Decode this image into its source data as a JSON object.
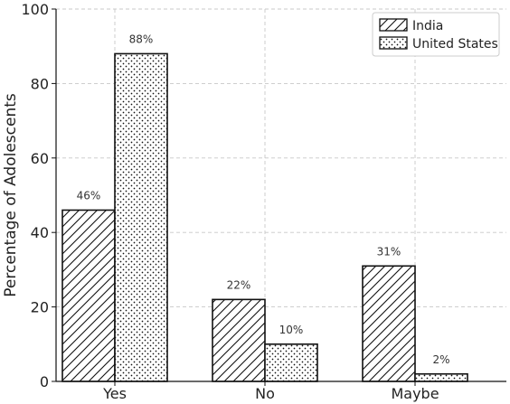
{
  "chart_data": {
    "type": "bar",
    "categories": [
      "Yes",
      "No",
      "Maybe"
    ],
    "series": [
      {
        "name": "India",
        "values": [
          46,
          22,
          31
        ],
        "pattern": "hatch"
      },
      {
        "name": "United States",
        "values": [
          88,
          10,
          2
        ],
        "pattern": "dots"
      }
    ],
    "data_labels": [
      [
        "46%",
        "22%",
        "31%"
      ],
      [
        "88%",
        "10%",
        "2%"
      ]
    ],
    "title": "",
    "xlabel": "",
    "ylabel": "Percentage of Adolescents",
    "ylim": [
      0,
      100
    ],
    "yticks": [
      0,
      20,
      40,
      60,
      80,
      100
    ],
    "grid": true,
    "legend": "top-right",
    "colors": {
      "bar_fill": "#ffffff",
      "bar_edge": "#111111",
      "grid": "#c8c8c8"
    }
  }
}
